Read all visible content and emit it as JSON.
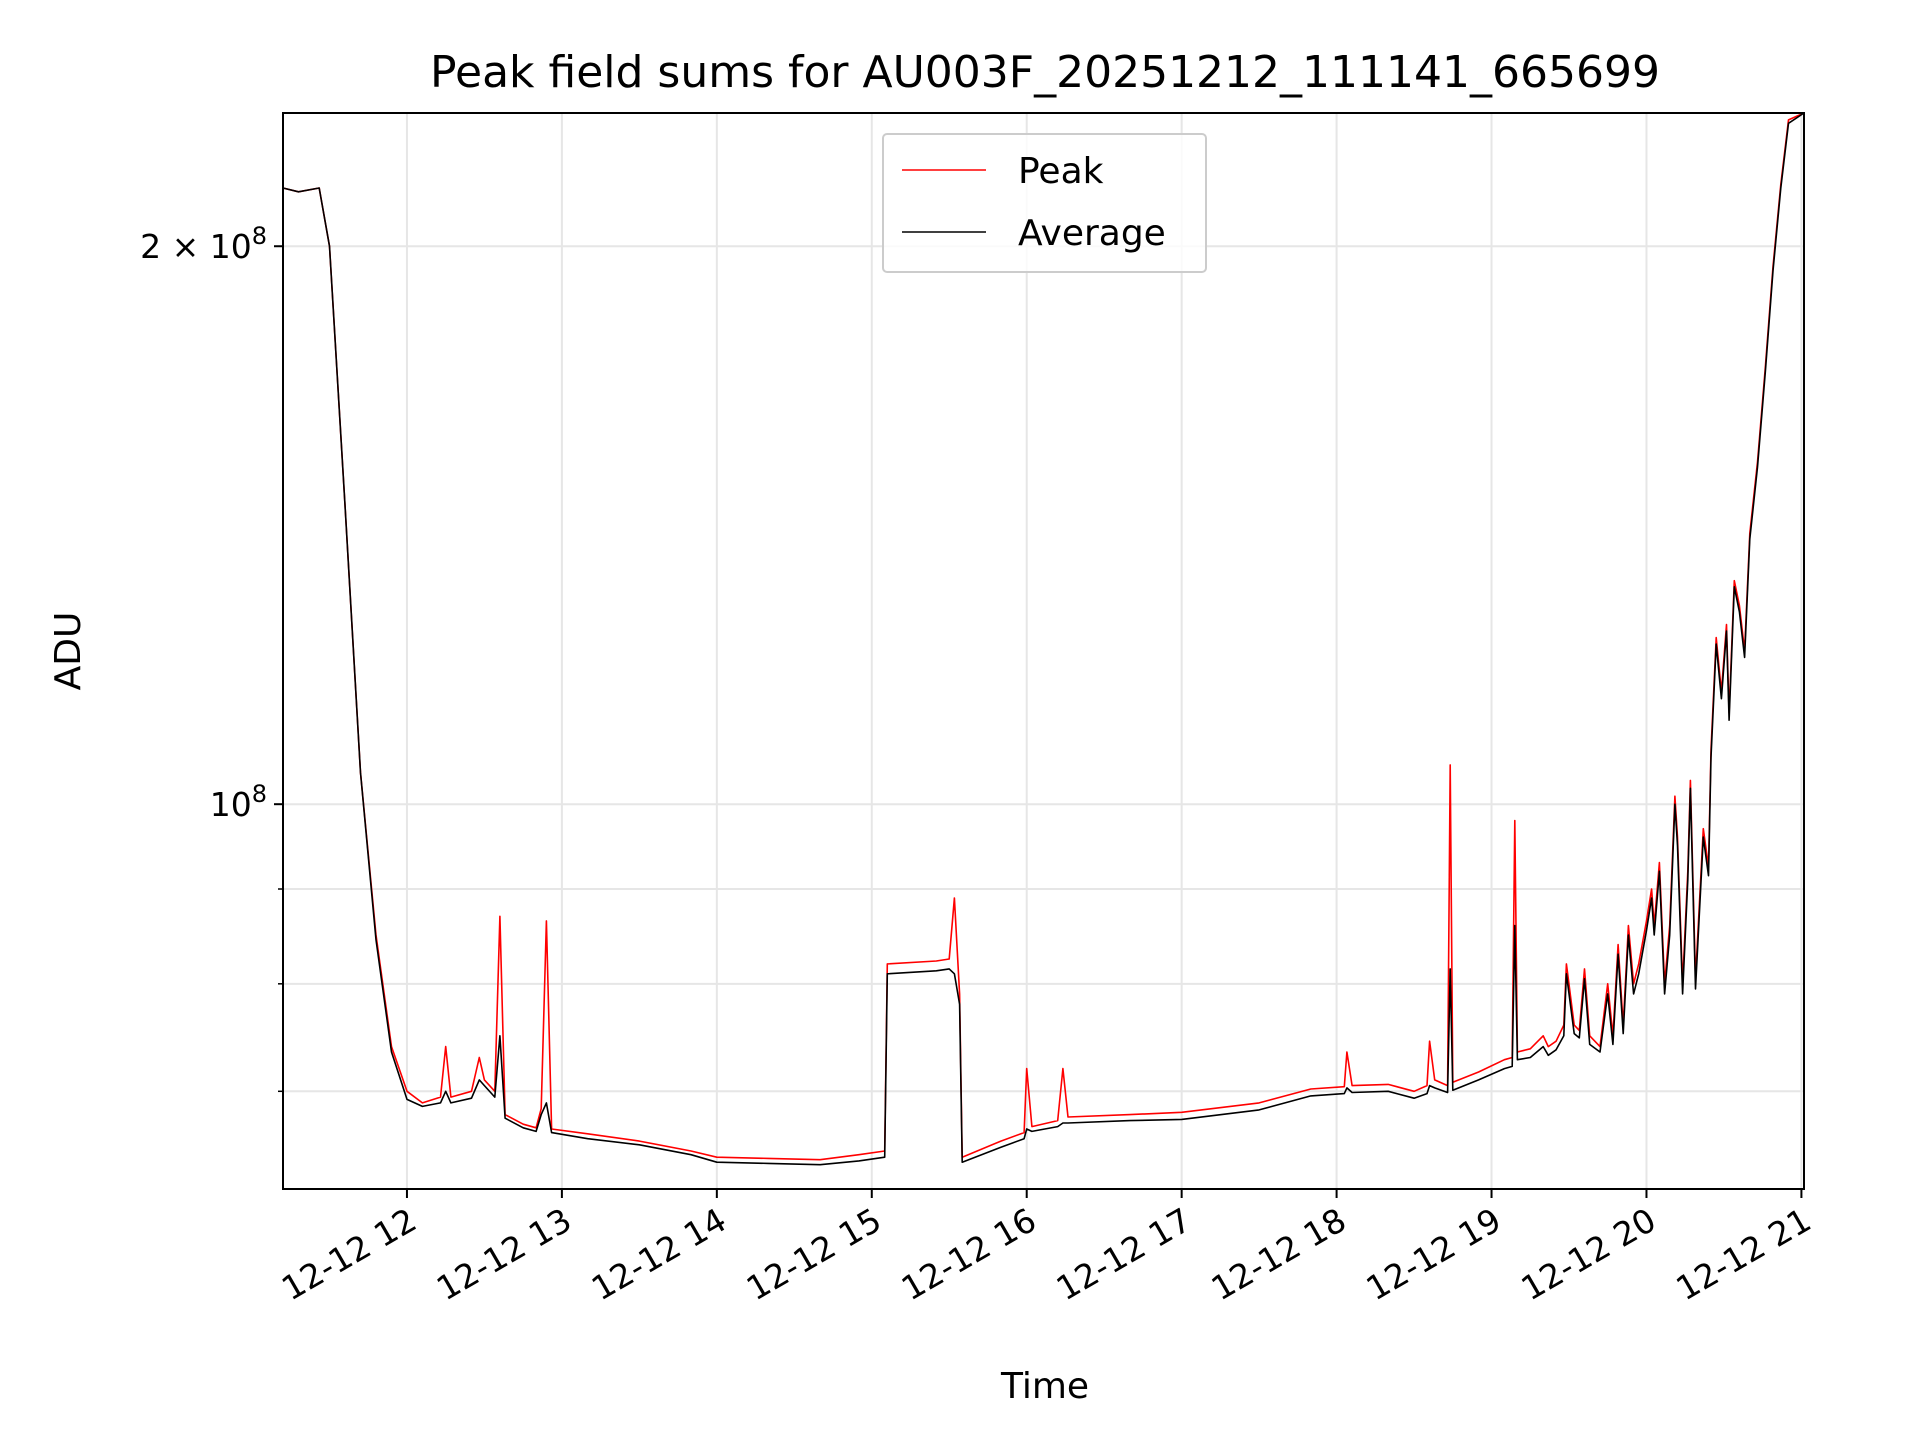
{
  "chart_data": {
    "type": "line",
    "title": "Peak field sums for AU003F_20251212_111141_665699",
    "xlabel": "Time",
    "ylabel": "ADU",
    "yscale": "log",
    "ylim": [
      62000000,
      236000000
    ],
    "xlim": [
      "2025-12-12 11:12",
      "2025-12-12 21:01"
    ],
    "grid": true,
    "legend_position": "upper center",
    "x_ticks": [
      "12-12 12",
      "12-12 13",
      "12-12 14",
      "12-12 15",
      "12-12 16",
      "12-12 17",
      "12-12 18",
      "12-12 19",
      "12-12 20",
      "12-12 21"
    ],
    "y_ticks_labeled": [
      {
        "value": 200000000,
        "label": "2 × 10^8"
      },
      {
        "value": 100000000,
        "label": "10^8"
      }
    ],
    "y_ticks_minor": [
      90000000,
      80000000,
      70000000,
      60000000
    ],
    "series": [
      {
        "name": "Peak",
        "color": "#ff0000",
        "points": [
          [
            "2025-12-12 11:12",
            215000000
          ],
          [
            "2025-12-12 11:18",
            214000000
          ],
          [
            "2025-12-12 11:26",
            215000000
          ],
          [
            "2025-12-12 11:30",
            200000000
          ],
          [
            "2025-12-12 11:36",
            145000000
          ],
          [
            "2025-12-12 11:42",
            104000000
          ],
          [
            "2025-12-12 11:48",
            85000000
          ],
          [
            "2025-12-12 11:54",
            74000000
          ],
          [
            "2025-12-12 12:00",
            70000000
          ],
          [
            "2025-12-12 12:06",
            69000000
          ],
          [
            "2025-12-12 12:13",
            69500000
          ],
          [
            "2025-12-12 12:15",
            74000000
          ],
          [
            "2025-12-12 12:17",
            69500000
          ],
          [
            "2025-12-12 12:25",
            70000000
          ],
          [
            "2025-12-12 12:28",
            73000000
          ],
          [
            "2025-12-12 12:30",
            71000000
          ],
          [
            "2025-12-12 12:34",
            70000000
          ],
          [
            "2025-12-12 12:36",
            87000000
          ],
          [
            "2025-12-12 12:38",
            68000000
          ],
          [
            "2025-12-12 12:45",
            67200000
          ],
          [
            "2025-12-12 12:50",
            66900000
          ],
          [
            "2025-12-12 12:52",
            68500000
          ],
          [
            "2025-12-12 12:54",
            86500000
          ],
          [
            "2025-12-12 12:56",
            66800000
          ],
          [
            "2025-12-12 13:10",
            66400000
          ],
          [
            "2025-12-12 13:30",
            65800000
          ],
          [
            "2025-12-12 13:50",
            65000000
          ],
          [
            "2025-12-12 14:00",
            64500000
          ],
          [
            "2025-12-12 14:20",
            64400000
          ],
          [
            "2025-12-12 14:40",
            64300000
          ],
          [
            "2025-12-12 14:55",
            64700000
          ],
          [
            "2025-12-12 15:05",
            65000000
          ],
          [
            "2025-12-12 15:06",
            82000000
          ],
          [
            "2025-12-12 15:25",
            82300000
          ],
          [
            "2025-12-12 15:30",
            82500000
          ],
          [
            "2025-12-12 15:32",
            89000000
          ],
          [
            "2025-12-12 15:34",
            79000000
          ],
          [
            "2025-12-12 15:35",
            64500000
          ],
          [
            "2025-12-12 15:50",
            65800000
          ],
          [
            "2025-12-12 15:59",
            66500000
          ],
          [
            "2025-12-12 16:00",
            72000000
          ],
          [
            "2025-12-12 16:02",
            67000000
          ],
          [
            "2025-12-12 16:12",
            67500000
          ],
          [
            "2025-12-12 16:14",
            72000000
          ],
          [
            "2025-12-12 16:16",
            67800000
          ],
          [
            "2025-12-12 16:40",
            68000000
          ],
          [
            "2025-12-12 17:00",
            68200000
          ],
          [
            "2025-12-12 17:30",
            69000000
          ],
          [
            "2025-12-12 17:50",
            70200000
          ],
          [
            "2025-12-12 18:03",
            70400000
          ],
          [
            "2025-12-12 18:04",
            73500000
          ],
          [
            "2025-12-12 18:06",
            70500000
          ],
          [
            "2025-12-12 18:20",
            70600000
          ],
          [
            "2025-12-12 18:30",
            70000000
          ],
          [
            "2025-12-12 18:35",
            70500000
          ],
          [
            "2025-12-12 18:36",
            74500000
          ],
          [
            "2025-12-12 18:38",
            71000000
          ],
          [
            "2025-12-12 18:43",
            70500000
          ],
          [
            "2025-12-12 18:44",
            105000000
          ],
          [
            "2025-12-12 18:45",
            70800000
          ],
          [
            "2025-12-12 18:55",
            71700000
          ],
          [
            "2025-12-12 19:05",
            72800000
          ],
          [
            "2025-12-12 19:08",
            73000000
          ],
          [
            "2025-12-12 19:09",
            98000000
          ],
          [
            "2025-12-12 19:10",
            73500000
          ],
          [
            "2025-12-12 19:15",
            73800000
          ],
          [
            "2025-12-12 19:20",
            75000000
          ],
          [
            "2025-12-12 19:22",
            74000000
          ],
          [
            "2025-12-12 19:25",
            74500000
          ],
          [
            "2025-12-12 19:28",
            76000000
          ],
          [
            "2025-12-12 19:29",
            82000000
          ],
          [
            "2025-12-12 19:32",
            76000000
          ],
          [
            "2025-12-12 19:34",
            75500000
          ],
          [
            "2025-12-12 19:36",
            81500000
          ],
          [
            "2025-12-12 19:38",
            75000000
          ],
          [
            "2025-12-12 19:42",
            74000000
          ],
          [
            "2025-12-12 19:45",
            80000000
          ],
          [
            "2025-12-12 19:47",
            75000000
          ],
          [
            "2025-12-12 19:49",
            84000000
          ],
          [
            "2025-12-12 19:51",
            76000000
          ],
          [
            "2025-12-12 19:53",
            86000000
          ],
          [
            "2025-12-12 19:55",
            80000000
          ],
          [
            "2025-12-12 19:57",
            82000000
          ],
          [
            "2025-12-12 20:00",
            86500000
          ],
          [
            "2025-12-12 20:02",
            90000000
          ],
          [
            "2025-12-12 20:03",
            86000000
          ],
          [
            "2025-12-12 20:05",
            93000000
          ],
          [
            "2025-12-12 20:07",
            80000000
          ],
          [
            "2025-12-12 20:09",
            86000000
          ],
          [
            "2025-12-12 20:11",
            101000000
          ],
          [
            "2025-12-12 20:12",
            96000000
          ],
          [
            "2025-12-12 20:14",
            80000000
          ],
          [
            "2025-12-12 20:16",
            92000000
          ],
          [
            "2025-12-12 20:17",
            103000000
          ],
          [
            "2025-12-12 20:19",
            80500000
          ],
          [
            "2025-12-12 20:22",
            97000000
          ],
          [
            "2025-12-12 20:24",
            92500000
          ],
          [
            "2025-12-12 20:25",
            107000000
          ],
          [
            "2025-12-12 20:27",
            123000000
          ],
          [
            "2025-12-12 20:29",
            115000000
          ],
          [
            "2025-12-12 20:31",
            125000000
          ],
          [
            "2025-12-12 20:32",
            112000000
          ],
          [
            "2025-12-12 20:34",
            132000000
          ],
          [
            "2025-12-12 20:36",
            128000000
          ],
          [
            "2025-12-12 20:38",
            121000000
          ],
          [
            "2025-12-12 20:40",
            140000000
          ],
          [
            "2025-12-12 20:43",
            153000000
          ],
          [
            "2025-12-12 20:46",
            172000000
          ],
          [
            "2025-12-12 20:49",
            195000000
          ],
          [
            "2025-12-12 20:52",
            216000000
          ],
          [
            "2025-12-12 20:55",
            234000000
          ],
          [
            "2025-12-12 21:01",
            236000000
          ]
        ]
      },
      {
        "name": "Average",
        "color": "#000000",
        "points": [
          [
            "2025-12-12 11:12",
            215000000
          ],
          [
            "2025-12-12 11:18",
            214000000
          ],
          [
            "2025-12-12 11:26",
            215000000
          ],
          [
            "2025-12-12 11:30",
            200000000
          ],
          [
            "2025-12-12 11:36",
            145000000
          ],
          [
            "2025-12-12 11:42",
            104000000
          ],
          [
            "2025-12-12 11:48",
            84500000
          ],
          [
            "2025-12-12 11:54",
            73500000
          ],
          [
            "2025-12-12 12:00",
            69300000
          ],
          [
            "2025-12-12 12:06",
            68700000
          ],
          [
            "2025-12-12 12:13",
            69000000
          ],
          [
            "2025-12-12 12:15",
            70000000
          ],
          [
            "2025-12-12 12:17",
            69000000
          ],
          [
            "2025-12-12 12:25",
            69400000
          ],
          [
            "2025-12-12 12:28",
            71000000
          ],
          [
            "2025-12-12 12:30",
            70500000
          ],
          [
            "2025-12-12 12:34",
            69500000
          ],
          [
            "2025-12-12 12:36",
            75000000
          ],
          [
            "2025-12-12 12:38",
            67700000
          ],
          [
            "2025-12-12 12:45",
            66900000
          ],
          [
            "2025-12-12 12:50",
            66600000
          ],
          [
            "2025-12-12 12:52",
            68000000
          ],
          [
            "2025-12-12 12:54",
            69000000
          ],
          [
            "2025-12-12 12:56",
            66500000
          ],
          [
            "2025-12-12 13:10",
            66000000
          ],
          [
            "2025-12-12 13:30",
            65500000
          ],
          [
            "2025-12-12 13:50",
            64700000
          ],
          [
            "2025-12-12 14:00",
            64100000
          ],
          [
            "2025-12-12 14:20",
            64000000
          ],
          [
            "2025-12-12 14:40",
            63900000
          ],
          [
            "2025-12-12 14:55",
            64200000
          ],
          [
            "2025-12-12 15:05",
            64500000
          ],
          [
            "2025-12-12 15:06",
            81000000
          ],
          [
            "2025-12-12 15:25",
            81300000
          ],
          [
            "2025-12-12 15:30",
            81500000
          ],
          [
            "2025-12-12 15:32",
            81000000
          ],
          [
            "2025-12-12 15:34",
            78000000
          ],
          [
            "2025-12-12 15:35",
            64100000
          ],
          [
            "2025-12-12 15:50",
            65300000
          ],
          [
            "2025-12-12 15:59",
            66000000
          ],
          [
            "2025-12-12 16:00",
            66800000
          ],
          [
            "2025-12-12 16:02",
            66600000
          ],
          [
            "2025-12-12 16:12",
            67000000
          ],
          [
            "2025-12-12 16:14",
            67300000
          ],
          [
            "2025-12-12 16:16",
            67300000
          ],
          [
            "2025-12-12 16:40",
            67500000
          ],
          [
            "2025-12-12 17:00",
            67600000
          ],
          [
            "2025-12-12 17:30",
            68400000
          ],
          [
            "2025-12-12 17:50",
            69600000
          ],
          [
            "2025-12-12 18:03",
            69800000
          ],
          [
            "2025-12-12 18:04",
            70300000
          ],
          [
            "2025-12-12 18:06",
            69900000
          ],
          [
            "2025-12-12 18:20",
            70000000
          ],
          [
            "2025-12-12 18:30",
            69400000
          ],
          [
            "2025-12-12 18:35",
            69800000
          ],
          [
            "2025-12-12 18:36",
            70500000
          ],
          [
            "2025-12-12 18:38",
            70300000
          ],
          [
            "2025-12-12 18:43",
            69900000
          ],
          [
            "2025-12-12 18:44",
            81500000
          ],
          [
            "2025-12-12 18:45",
            70100000
          ],
          [
            "2025-12-12 18:55",
            71000000
          ],
          [
            "2025-12-12 19:05",
            72000000
          ],
          [
            "2025-12-12 19:08",
            72200000
          ],
          [
            "2025-12-12 19:09",
            86000000
          ],
          [
            "2025-12-12 19:10",
            72800000
          ],
          [
            "2025-12-12 19:15",
            73000000
          ],
          [
            "2025-12-12 19:20",
            74000000
          ],
          [
            "2025-12-12 19:22",
            73200000
          ],
          [
            "2025-12-12 19:25",
            73700000
          ],
          [
            "2025-12-12 19:28",
            75000000
          ],
          [
            "2025-12-12 19:29",
            81000000
          ],
          [
            "2025-12-12 19:32",
            75200000
          ],
          [
            "2025-12-12 19:34",
            74800000
          ],
          [
            "2025-12-12 19:36",
            80500000
          ],
          [
            "2025-12-12 19:38",
            74200000
          ],
          [
            "2025-12-12 19:42",
            73500000
          ],
          [
            "2025-12-12 19:45",
            79000000
          ],
          [
            "2025-12-12 19:47",
            74200000
          ],
          [
            "2025-12-12 19:49",
            83000000
          ],
          [
            "2025-12-12 19:51",
            75200000
          ],
          [
            "2025-12-12 19:53",
            85000000
          ],
          [
            "2025-12-12 19:55",
            79000000
          ],
          [
            "2025-12-12 19:57",
            81000000
          ],
          [
            "2025-12-12 20:00",
            85500000
          ],
          [
            "2025-12-12 20:02",
            89000000
          ],
          [
            "2025-12-12 20:03",
            85000000
          ],
          [
            "2025-12-12 20:05",
            92000000
          ],
          [
            "2025-12-12 20:07",
            79000000
          ],
          [
            "2025-12-12 20:09",
            85000000
          ],
          [
            "2025-12-12 20:11",
            100000000
          ],
          [
            "2025-12-12 20:12",
            95000000
          ],
          [
            "2025-12-12 20:14",
            79000000
          ],
          [
            "2025-12-12 20:16",
            91000000
          ],
          [
            "2025-12-12 20:17",
            102000000
          ],
          [
            "2025-12-12 20:19",
            79500000
          ],
          [
            "2025-12-12 20:22",
            96000000
          ],
          [
            "2025-12-12 20:24",
            91500000
          ],
          [
            "2025-12-12 20:25",
            106000000
          ],
          [
            "2025-12-12 20:27",
            122000000
          ],
          [
            "2025-12-12 20:29",
            114000000
          ],
          [
            "2025-12-12 20:31",
            124000000
          ],
          [
            "2025-12-12 20:32",
            111000000
          ],
          [
            "2025-12-12 20:34",
            131000000
          ],
          [
            "2025-12-12 20:36",
            127000000
          ],
          [
            "2025-12-12 20:38",
            120000000
          ],
          [
            "2025-12-12 20:40",
            139000000
          ],
          [
            "2025-12-12 20:43",
            152000000
          ],
          [
            "2025-12-12 20:46",
            171000000
          ],
          [
            "2025-12-12 20:49",
            194000000
          ],
          [
            "2025-12-12 20:52",
            215000000
          ],
          [
            "2025-12-12 20:55",
            233000000
          ],
          [
            "2025-12-12 21:01",
            236000000
          ]
        ]
      }
    ]
  }
}
